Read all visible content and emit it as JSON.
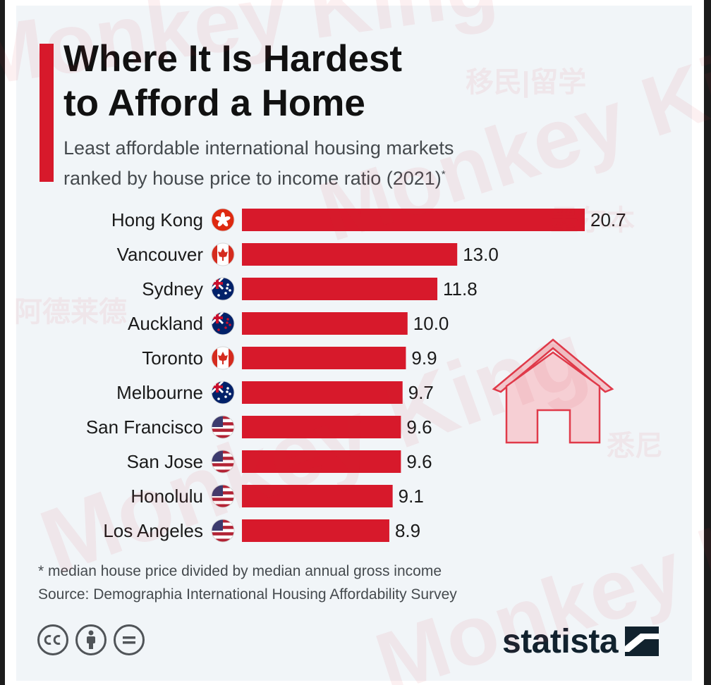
{
  "title_lines": [
    "Where It Is Hardest",
    "to Afford a Home"
  ],
  "subtitle_lines": [
    "Least affordable international housing markets",
    "ranked by house price to income ratio (2021)"
  ],
  "subtitle_mark": "*",
  "footnote": "* median house price divided by median annual gross income",
  "source": "Source: Demographia International Housing Affordability Survey",
  "brand": "statista",
  "watermark": {
    "text": "Monkey King",
    "cjk": [
      "移民|留学",
      "阿德莱德",
      "悉尼",
      "墨尔本"
    ]
  },
  "colors": {
    "bar": "#d7192b",
    "accent": "#d7192b",
    "text": "#1a1a1a",
    "subtext": "#454a4e",
    "background": "#f1f5f8",
    "house": "#e03a4a"
  },
  "icons": [
    "creative-commons-icon",
    "attribution-icon",
    "no-derivatives-icon",
    "statista-logo-icon",
    "house-icon"
  ],
  "chart_data": {
    "type": "bar",
    "orientation": "horizontal",
    "categories": [
      "Hong Kong",
      "Vancouver",
      "Sydney",
      "Auckland",
      "Toronto",
      "Melbourne",
      "San Francisco",
      "San Jose",
      "Honolulu",
      "Los Angeles"
    ],
    "values": [
      20.7,
      13.0,
      11.8,
      10.0,
      9.9,
      9.7,
      9.6,
      9.6,
      9.1,
      8.9
    ],
    "value_labels": [
      "20.7",
      "13.0",
      "11.8",
      "10.0",
      "9.9",
      "9.7",
      "9.6",
      "9.6",
      "9.1",
      "8.9"
    ],
    "flags": [
      "hong-kong",
      "canada",
      "australia",
      "new-zealand",
      "canada",
      "australia",
      "usa",
      "usa",
      "usa",
      "usa"
    ],
    "xlim": [
      0,
      20.7
    ],
    "grid": false,
    "legend": "none"
  }
}
